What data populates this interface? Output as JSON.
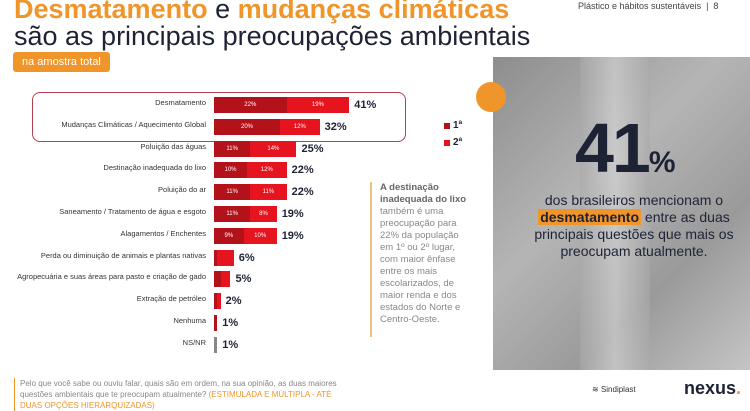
{
  "header": {
    "title_part1": "Desmatamento",
    "title_and": " e ",
    "title_part2": "mudanças climáticas",
    "subtitle": "são as principais preocupações ambientais",
    "badge": "na amostra total",
    "section": "Plástico e hábitos sustentáveis  |  8"
  },
  "legend": {
    "first": "1ª",
    "second": "2ª"
  },
  "chart_data": {
    "type": "bar",
    "stacked": true,
    "series_names": [
      "1ª",
      "2ª"
    ],
    "rows": [
      {
        "label": "Desmatamento",
        "first": 22,
        "second": 19,
        "total": 41,
        "first_label": "22%",
        "second_label": "19%",
        "total_label": "41%"
      },
      {
        "label": "Mudanças Climáticas / Aquecimento Global",
        "first": 20,
        "second": 12,
        "total": 32,
        "first_label": "20%",
        "second_label": "12%",
        "total_label": "32%"
      },
      {
        "label": "Poluição das águas",
        "first": 11,
        "second": 14,
        "total": 25,
        "first_label": "11%",
        "second_label": "14%",
        "total_label": "25%"
      },
      {
        "label": "Destinação inadequada do lixo",
        "first": 10,
        "second": 12,
        "total": 22,
        "first_label": "10%",
        "second_label": "12%",
        "total_label": "22%"
      },
      {
        "label": "Poluição do ar",
        "first": 11,
        "second": 11,
        "total": 22,
        "first_label": "11%",
        "second_label": "11%",
        "total_label": "22%"
      },
      {
        "label": "Saneamento / Tratamento de água e esgoto",
        "first": 11,
        "second": 8,
        "total": 19,
        "first_label": "11%",
        "second_label": "8%",
        "total_label": "19%"
      },
      {
        "label": "Alagamentos / Enchentes",
        "first": 9,
        "second": 10,
        "total": 19,
        "first_label": "9%",
        "second_label": "10%",
        "total_label": "19%"
      },
      {
        "label": "Perda ou diminuição de animais e plantas nativas",
        "first": 1,
        "second": 5,
        "total": 6,
        "first_label": "",
        "second_label": "",
        "total_label": "6%"
      },
      {
        "label": "Agropecuária e suas áreas para pasto e criação de gado",
        "first": 2,
        "second": 3,
        "total": 5,
        "first_label": "",
        "second_label": "",
        "total_label": "5%"
      },
      {
        "label": "Extração de petróleo",
        "first": 1,
        "second": 1,
        "total": 2,
        "first_label": "",
        "second_label": "",
        "total_label": "2%"
      },
      {
        "label": "Nenhuma",
        "first": 1,
        "second": 0,
        "total": 1,
        "first_label": "",
        "second_label": "",
        "total_label": "1%"
      },
      {
        "label": "NS/NR",
        "first": 1,
        "second": 0,
        "total": 1,
        "first_label": "",
        "second_label": "",
        "total_label": "1%",
        "grey": true
      }
    ]
  },
  "note": {
    "bold": "A destinação inadequada do lixo",
    "text": " também é uma preocupação para 22% da população em 1º ou 2º lugar, com maior ênfase entre os mais escolarizados, de maior renda e dos estados do Norte e Centro-Oeste."
  },
  "highlight": {
    "value": "41",
    "unit": "%",
    "text1": "dos brasileiros mencionam o",
    "keyword": "desmatamento",
    "text2": " entre as duas principais questões que mais os preocupam atualmente."
  },
  "footer": {
    "question": "Pelo que você sabe ou ouviu falar, quais são em ordem, na sua opinião, as duas maiores questões ambientais que te preocupam atualmente? ",
    "qualifier": "(ESTIMULADA E MÚLTIPLA - ATÉ DUAS OPÇÕES HIERARQUIZADAS)",
    "logo1": "Sindiplast",
    "logo2": "nexus"
  },
  "colors": {
    "orange": "#f0952a",
    "first": "#b3121a",
    "second": "#e5141e",
    "grey": "#888888"
  }
}
